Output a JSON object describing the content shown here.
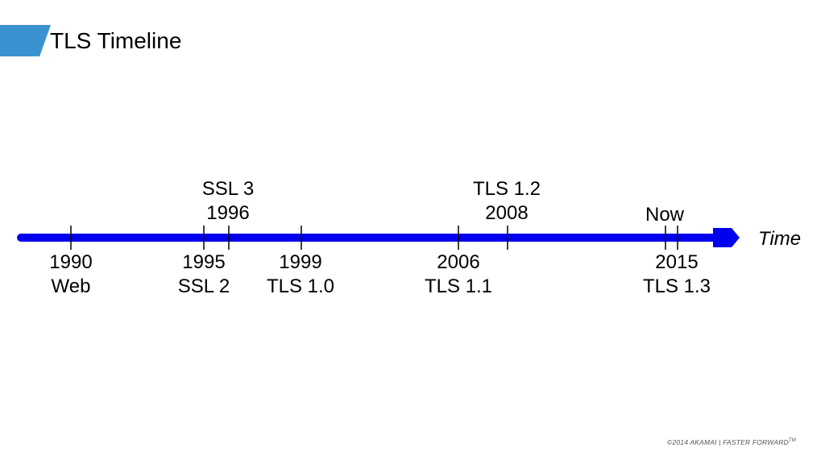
{
  "slide": {
    "title": "TLS Timeline"
  },
  "timeline": {
    "axis_label": "Time",
    "axis_color": "#0000ee",
    "accent_color": "#3a93d0",
    "events": [
      {
        "year": "1990",
        "name": "Web",
        "position": "below"
      },
      {
        "year": "1995",
        "name": "SSL 2",
        "position": "below"
      },
      {
        "year": "1996",
        "name": "SSL 3",
        "position": "above"
      },
      {
        "year": "1999",
        "name": "TLS 1.0",
        "position": "below"
      },
      {
        "year": "2006",
        "name": "TLS 1.1",
        "position": "below"
      },
      {
        "year": "2008",
        "name": "TLS 1.2",
        "position": "above"
      },
      {
        "year": "2015",
        "name": "TLS 1.3",
        "position": "below"
      }
    ],
    "now_label": "Now"
  },
  "footer": {
    "text": "©2014 AKAMAI  |  FASTER FORWARD",
    "trademark": "TM"
  }
}
